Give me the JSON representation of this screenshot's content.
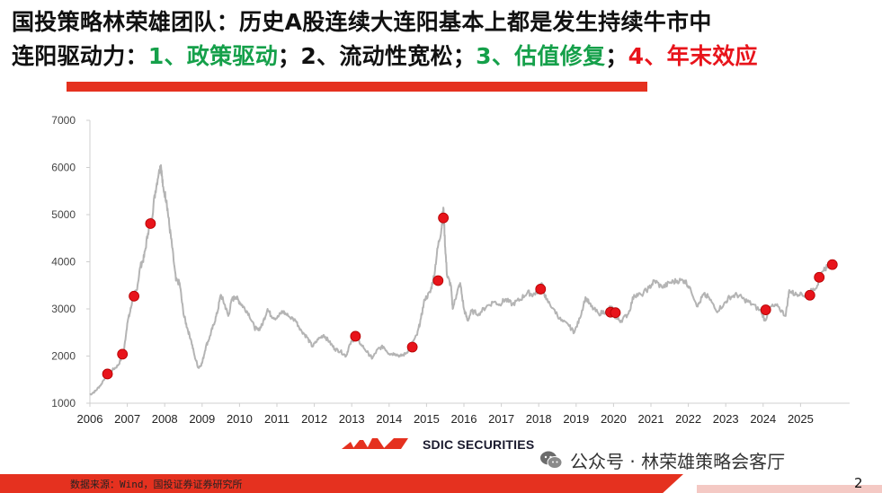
{
  "title": {
    "line1": "国投策略林荣雄团队：历史A股连续大连阳基本上都是发生持续牛市中",
    "line2_prefix": "连阳驱动力：",
    "driver1": "1、政策驱动",
    "sep1": "；",
    "driver2": "2、流动性宽松",
    "sep2": "；",
    "driver3": "3、估值修复",
    "sep3": "；",
    "driver4": "4、年末效应"
  },
  "colors": {
    "accent_red": "#e5311f",
    "green": "#15a04a",
    "line_gray": "#b4b4b4",
    "marker_red": "#e8141b"
  },
  "logo": {
    "text": "SDIC SECURITIES"
  },
  "watermark": {
    "text": "公众号 · 林荣雄策略会客厅",
    "icon": "wechat-icon"
  },
  "footer": {
    "source": "数据来源：Wind，国投证券证券研究所",
    "page_number": "2"
  },
  "chart_data": {
    "type": "line",
    "title": "",
    "xlabel": "",
    "ylabel": "",
    "ylim": [
      1000,
      7000
    ],
    "y_ticks": [
      1000,
      2000,
      3000,
      4000,
      5000,
      6000,
      7000
    ],
    "xlim": [
      2006.0,
      2025.9
    ],
    "x_ticks": [
      "2006",
      "2007",
      "2008",
      "2009",
      "2010",
      "2011",
      "2012",
      "2013",
      "2014",
      "2015",
      "2016",
      "2017",
      "2018",
      "2019",
      "2020",
      "2021",
      "2022",
      "2023",
      "2024",
      "2025"
    ],
    "grid": false,
    "legend": "none",
    "series": [
      {
        "values": [
          [
            2006.0,
            1180
          ],
          [
            2006.15,
            1260
          ],
          [
            2006.3,
            1400
          ],
          [
            2006.45,
            1620
          ],
          [
            2006.6,
            1700
          ],
          [
            2006.75,
            1800
          ],
          [
            2006.9,
            2050
          ],
          [
            2007.0,
            2700
          ],
          [
            2007.08,
            2950
          ],
          [
            2007.15,
            3250
          ],
          [
            2007.25,
            3400
          ],
          [
            2007.35,
            3900
          ],
          [
            2007.45,
            4100
          ],
          [
            2007.55,
            4600
          ],
          [
            2007.65,
            4900
          ],
          [
            2007.75,
            5500
          ],
          [
            2007.85,
            5950
          ],
          [
            2007.9,
            6050
          ],
          [
            2007.95,
            5600
          ],
          [
            2008.05,
            5300
          ],
          [
            2008.12,
            4800
          ],
          [
            2008.2,
            4300
          ],
          [
            2008.3,
            3600
          ],
          [
            2008.4,
            3550
          ],
          [
            2008.5,
            2900
          ],
          [
            2008.6,
            2600
          ],
          [
            2008.7,
            2350
          ],
          [
            2008.8,
            2000
          ],
          [
            2008.9,
            1750
          ],
          [
            2009.0,
            1850
          ],
          [
            2009.1,
            2200
          ],
          [
            2009.2,
            2400
          ],
          [
            2009.3,
            2650
          ],
          [
            2009.4,
            2900
          ],
          [
            2009.5,
            3300
          ],
          [
            2009.6,
            3100
          ],
          [
            2009.7,
            2850
          ],
          [
            2009.8,
            3200
          ],
          [
            2009.9,
            3250
          ],
          [
            2010.0,
            3150
          ],
          [
            2010.1,
            3050
          ],
          [
            2010.25,
            2900
          ],
          [
            2010.4,
            2600
          ],
          [
            2010.5,
            2550
          ],
          [
            2010.6,
            2650
          ],
          [
            2010.75,
            3000
          ],
          [
            2010.85,
            2850
          ],
          [
            2011.0,
            2800
          ],
          [
            2011.15,
            2950
          ],
          [
            2011.3,
            2850
          ],
          [
            2011.5,
            2750
          ],
          [
            2011.65,
            2550
          ],
          [
            2011.8,
            2400
          ],
          [
            2011.95,
            2200
          ],
          [
            2012.1,
            2350
          ],
          [
            2012.25,
            2450
          ],
          [
            2012.4,
            2300
          ],
          [
            2012.55,
            2150
          ],
          [
            2012.7,
            2100
          ],
          [
            2012.85,
            2000
          ],
          [
            2012.95,
            2250
          ],
          [
            2013.1,
            2400
          ],
          [
            2013.25,
            2250
          ],
          [
            2013.45,
            2050
          ],
          [
            2013.55,
            1950
          ],
          [
            2013.7,
            2150
          ],
          [
            2013.85,
            2200
          ],
          [
            2014.0,
            2050
          ],
          [
            2014.15,
            2050
          ],
          [
            2014.3,
            2000
          ],
          [
            2014.45,
            2050
          ],
          [
            2014.6,
            2250
          ],
          [
            2014.75,
            2450
          ],
          [
            2014.85,
            2800
          ],
          [
            2014.95,
            3200
          ],
          [
            2015.1,
            3350
          ],
          [
            2015.2,
            3700
          ],
          [
            2015.3,
            4300
          ],
          [
            2015.4,
            4700
          ],
          [
            2015.45,
            5150
          ],
          [
            2015.5,
            4300
          ],
          [
            2015.55,
            3700
          ],
          [
            2015.65,
            3500
          ],
          [
            2015.7,
            3000
          ],
          [
            2015.8,
            3300
          ],
          [
            2015.9,
            3550
          ],
          [
            2016.0,
            3000
          ],
          [
            2016.1,
            2750
          ],
          [
            2016.2,
            2950
          ],
          [
            2016.4,
            2900
          ],
          [
            2016.6,
            3050
          ],
          [
            2016.8,
            3150
          ],
          [
            2016.95,
            3100
          ],
          [
            2017.1,
            3200
          ],
          [
            2017.3,
            3100
          ],
          [
            2017.5,
            3200
          ],
          [
            2017.7,
            3350
          ],
          [
            2017.85,
            3300
          ],
          [
            2018.0,
            3400
          ],
          [
            2018.08,
            3550
          ],
          [
            2018.2,
            3200
          ],
          [
            2018.4,
            3000
          ],
          [
            2018.6,
            2750
          ],
          [
            2018.8,
            2650
          ],
          [
            2018.95,
            2500
          ],
          [
            2019.1,
            2800
          ],
          [
            2019.25,
            3250
          ],
          [
            2019.4,
            3050
          ],
          [
            2019.6,
            2900
          ],
          [
            2019.8,
            2950
          ],
          [
            2019.95,
            3050
          ],
          [
            2020.05,
            2800
          ],
          [
            2020.2,
            2750
          ],
          [
            2020.4,
            2900
          ],
          [
            2020.55,
            3300
          ],
          [
            2020.75,
            3300
          ],
          [
            2020.95,
            3450
          ],
          [
            2021.1,
            3600
          ],
          [
            2021.3,
            3450
          ],
          [
            2021.5,
            3550
          ],
          [
            2021.7,
            3600
          ],
          [
            2021.9,
            3600
          ],
          [
            2022.05,
            3450
          ],
          [
            2022.25,
            3050
          ],
          [
            2022.4,
            3300
          ],
          [
            2022.55,
            3250
          ],
          [
            2022.75,
            2950
          ],
          [
            2022.95,
            3100
          ],
          [
            2023.1,
            3250
          ],
          [
            2023.3,
            3300
          ],
          [
            2023.5,
            3200
          ],
          [
            2023.7,
            3100
          ],
          [
            2023.95,
            2950
          ],
          [
            2024.05,
            2750
          ],
          [
            2024.2,
            3050
          ],
          [
            2024.4,
            3050
          ],
          [
            2024.6,
            2850
          ],
          [
            2024.7,
            3400
          ],
          [
            2024.85,
            3300
          ],
          [
            2025.0,
            3350
          ],
          [
            2025.15,
            3250
          ],
          [
            2025.3,
            3400
          ],
          [
            2025.45,
            3500
          ],
          [
            2025.6,
            3800
          ],
          [
            2025.75,
            3950
          ],
          [
            2025.9,
            3950
          ]
        ]
      }
    ],
    "markers": [
      [
        2006.47,
        1620
      ],
      [
        2006.87,
        2040
      ],
      [
        2007.18,
        3270
      ],
      [
        2007.62,
        4810
      ],
      [
        2013.1,
        2420
      ],
      [
        2014.62,
        2190
      ],
      [
        2015.31,
        3600
      ],
      [
        2015.45,
        4930
      ],
      [
        2018.05,
        3420
      ],
      [
        2019.92,
        2930
      ],
      [
        2020.05,
        2920
      ],
      [
        2024.07,
        2980
      ],
      [
        2025.25,
        3290
      ],
      [
        2025.5,
        3670
      ],
      [
        2025.85,
        3940
      ]
    ]
  }
}
